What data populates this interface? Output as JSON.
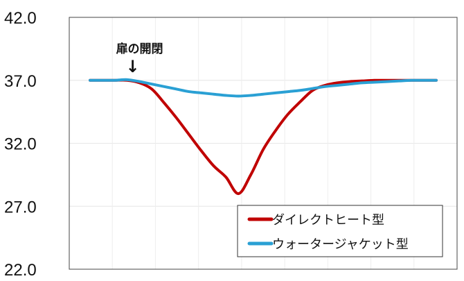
{
  "chart_data": {
    "type": "line",
    "title": "",
    "xlabel": "",
    "ylabel": "",
    "ylim": [
      22.0,
      42.0
    ],
    "yticks": [
      "42.0",
      "37.0",
      "32.0",
      "27.0",
      "22.0"
    ],
    "xlim": [
      0,
      28
    ],
    "grid": true,
    "legend_position": "bottom-right",
    "annotation": {
      "text": "扉の開閉",
      "x": 3,
      "arrow": "↓"
    },
    "series": [
      {
        "name": "ダイレクトヒート型",
        "color": "#c00000",
        "x": [
          0,
          1,
          2,
          3,
          4,
          5,
          6,
          7,
          8,
          9,
          10,
          11,
          12,
          13,
          14,
          15,
          16,
          17,
          18,
          19,
          20,
          21,
          22,
          23,
          24,
          25,
          26,
          27,
          28
        ],
        "values": [
          37.0,
          37.0,
          37.0,
          37.0,
          36.8,
          36.3,
          35.2,
          34.0,
          32.7,
          31.4,
          30.2,
          29.3,
          28.0,
          29.5,
          31.5,
          33.0,
          34.3,
          35.3,
          36.2,
          36.6,
          36.8,
          36.9,
          36.95,
          37.0,
          37.0,
          37.0,
          37.0,
          37.0,
          37.0
        ]
      },
      {
        "name": "ウォータージャケット型",
        "color": "#2aa0d4",
        "x": [
          0,
          1,
          2,
          3,
          4,
          5,
          6,
          7,
          8,
          9,
          10,
          11,
          12,
          13,
          14,
          15,
          16,
          17,
          18,
          19,
          20,
          21,
          22,
          23,
          24,
          25,
          26,
          27,
          28
        ],
        "values": [
          37.0,
          37.0,
          37.0,
          37.05,
          36.9,
          36.7,
          36.5,
          36.3,
          36.1,
          36.0,
          35.9,
          35.8,
          35.75,
          35.8,
          35.9,
          36.0,
          36.1,
          36.2,
          36.35,
          36.5,
          36.6,
          36.7,
          36.8,
          36.85,
          36.9,
          36.95,
          37.0,
          37.0,
          37.0
        ]
      }
    ]
  }
}
